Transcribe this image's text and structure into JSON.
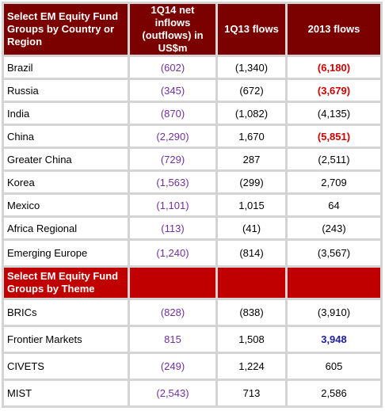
{
  "header": {
    "col1": "Select EM Equity Fund Groups by Country or Region",
    "col2": "1Q14 net inflows (outflows) in US$m",
    "col3": "1Q13 flows",
    "col4": "2013 flows"
  },
  "colors": {
    "header_bg": "#7b0000",
    "section_bg": "#c00000",
    "purple_text": "#7030a0",
    "red_text": "#d00000",
    "blue_text": "#2020a0"
  },
  "country_rows": [
    {
      "name": "Brazil",
      "q14": "(602)",
      "q13": "(1,340)",
      "y2013": "(6,180)"
    },
    {
      "name": "Russia",
      "q14": "(345)",
      "q13": "(672)",
      "y2013": "(3,679)"
    },
    {
      "name": "India",
      "q14": "(870)",
      "q13": "(1,082)",
      "y2013": "(4,135)"
    },
    {
      "name": "China",
      "q14": "(2,290)",
      "q13": "1,670",
      "y2013": "(5,851)"
    },
    {
      "name": "Greater China",
      "q14": "(729)",
      "q13": "287",
      "y2013": "(2,511)"
    },
    {
      "name": "Korea",
      "q14": "(1,563)",
      "q13": "(299)",
      "y2013": "2,709"
    },
    {
      "name": "Mexico",
      "q14": "(1,101)",
      "q13": "1,015",
      "y2013": "64"
    },
    {
      "name": "Africa Regional",
      "q14": "(113)",
      "q13": "(41)",
      "y2013": "(243)"
    },
    {
      "name": "Emerging Europe",
      "q14": "(1,240)",
      "q13": "(814)",
      "y2013": "(3,567)"
    }
  ],
  "theme_section": {
    "title": "Select EM Equity Fund Groups by Theme"
  },
  "theme_rows": [
    {
      "name": "BRICs",
      "q14": "(828)",
      "q13": "(838)",
      "y2013": "(3,910)"
    },
    {
      "name": "Frontier Markets",
      "q14": "815",
      "q13": "1,508",
      "y2013": "3,948"
    },
    {
      "name": "CIVETS",
      "q14": "(249)",
      "q13": "1,224",
      "y2013": "605"
    },
    {
      "name": "MIST",
      "q14": "(2,543)",
      "q13": "713",
      "y2013": "2,586"
    }
  ]
}
